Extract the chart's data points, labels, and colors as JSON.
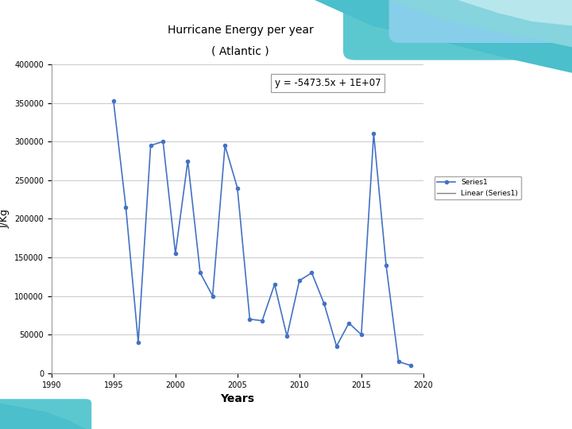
{
  "title": "Hurricane Energy per year",
  "subtitle": "( Atlantic )",
  "xlabel": "Years",
  "ylabel": "J/Kg",
  "years": [
    1995,
    1996,
    1997,
    1998,
    1999,
    2000,
    2001,
    2002,
    2003,
    2004,
    2005,
    2006,
    2007,
    2008,
    2009,
    2010,
    2011,
    2012,
    2013,
    2014,
    2015,
    2016,
    2017,
    2018,
    2019
  ],
  "values": [
    353000,
    215000,
    40000,
    295000,
    300000,
    155000,
    275000,
    130000,
    100000,
    295000,
    240000,
    70000,
    68000,
    115000,
    48000,
    120000,
    130000,
    90000,
    35000,
    65000,
    50000,
    310000,
    140000,
    15000,
    10000
  ],
  "xlim": [
    1990,
    2020
  ],
  "ylim": [
    0,
    400000
  ],
  "yticks": [
    0,
    50000,
    100000,
    150000,
    200000,
    250000,
    300000,
    350000,
    400000
  ],
  "xticks": [
    1990,
    1995,
    2000,
    2005,
    2010,
    2015,
    2020
  ],
  "line_color": "#4472C4",
  "trend_color": "#808080",
  "marker": "o",
  "marker_size": 3,
  "equation": "y = -5473.5x + 1E+07",
  "bg_color": "#E8F4F8",
  "plot_bg": "#FFFFFF",
  "grid_color": "#C0C0C0",
  "legend_series": "Series1",
  "legend_linear": "Linear (Series1)",
  "slope": -5473.5,
  "intercept": 10000000
}
